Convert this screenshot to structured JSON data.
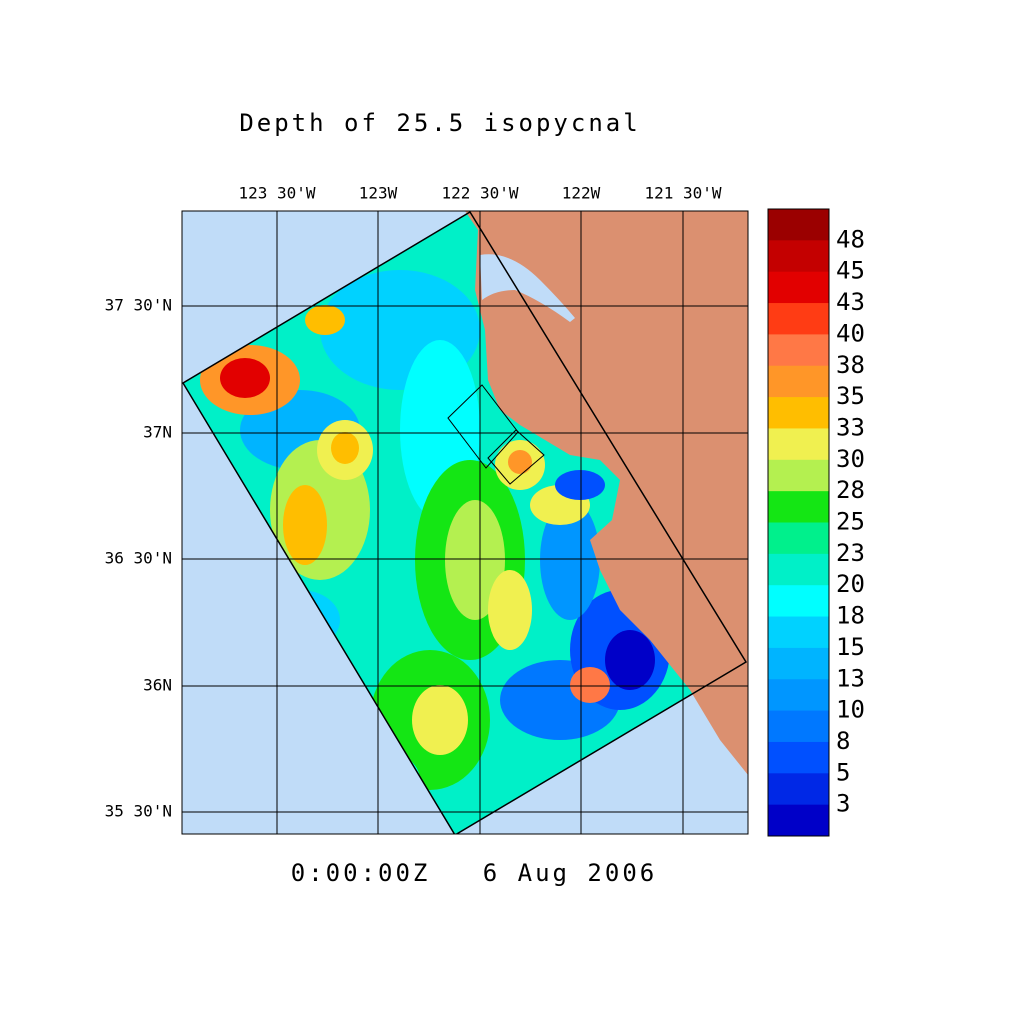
{
  "title": "Depth of 25.5 isopycnal",
  "lon_ticks": [
    "123 30'W",
    "123W",
    "122 30'W",
    "122W",
    "121 30'W"
  ],
  "lat_ticks": [
    "37 30'N",
    "37N",
    "36 30'N",
    "36N",
    "35 30'N"
  ],
  "colorbar": {
    "levels": [
      48,
      45,
      43,
      40,
      38,
      35,
      33,
      30,
      28,
      25,
      23,
      20,
      18,
      15,
      13,
      10,
      8,
      5,
      3
    ],
    "colors": [
      "#9b0000",
      "#c40000",
      "#e20000",
      "#ff3c14",
      "#ff7846",
      "#ff9628",
      "#ffbe00",
      "#f0f050",
      "#b4f050",
      "#14e614",
      "#00f08c",
      "#00f0c8",
      "#00ffff",
      "#00d2ff",
      "#00b4ff",
      "#0096ff",
      "#0078ff",
      "#0050ff",
      "#0028e6",
      "#0000c8"
    ]
  },
  "timestamp": "0:00:00Z   6 Aug 2006"
}
